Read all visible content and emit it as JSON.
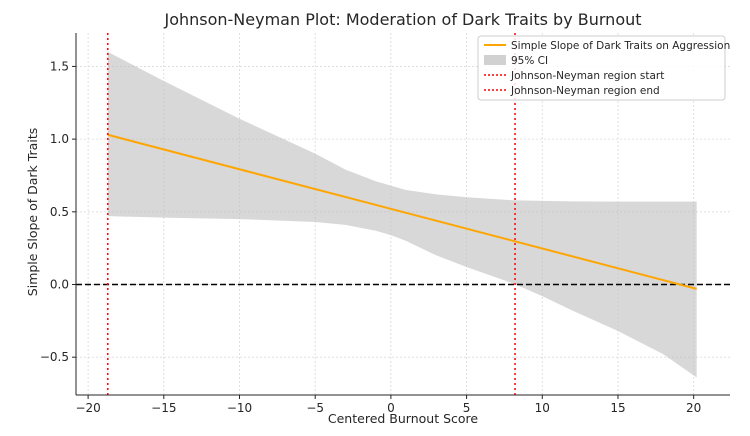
{
  "chart_data": {
    "type": "line",
    "title": "Johnson-Neyman Plot: Moderation of Dark Traits by Burnout",
    "xlabel": "Centered Burnout Score",
    "ylabel": "Simple Slope of Dark Traits",
    "xlim": [
      -20.8,
      22.4
    ],
    "ylim": [
      -0.76,
      1.73
    ],
    "x_ticks": [
      -20,
      -15,
      -10,
      -5,
      0,
      5,
      10,
      15,
      20
    ],
    "x_tick_labels": [
      "−20",
      "−15",
      "−10",
      "−5",
      "0",
      "5",
      "10",
      "15",
      "20"
    ],
    "y_ticks": [
      -0.5,
      0.0,
      0.5,
      1.0,
      1.5
    ],
    "y_tick_labels": [
      "−0.5",
      "0.0",
      "0.5",
      "1.0",
      "1.5"
    ],
    "grid": true,
    "legend_position": "top-right",
    "series": [
      {
        "name": "Simple Slope of Dark Traits on Aggression",
        "color": "#FFA500",
        "x": [
          -18.7,
          20.2
        ],
        "y": [
          1.03,
          -0.03
        ]
      }
    ],
    "ci_band": {
      "name": "95% CI",
      "color": "#BEBEBE",
      "x": [
        -18.7,
        -15,
        -10,
        -5,
        -3,
        -1,
        0,
        1,
        3,
        5,
        8,
        10,
        12,
        15,
        18,
        20.2
      ],
      "upper": [
        1.6,
        1.4,
        1.14,
        0.9,
        0.79,
        0.71,
        0.68,
        0.65,
        0.62,
        0.6,
        0.58,
        0.575,
        0.572,
        0.57,
        0.57,
        0.57
      ],
      "lower": [
        0.47,
        0.46,
        0.45,
        0.43,
        0.41,
        0.37,
        0.34,
        0.3,
        0.2,
        0.12,
        0.01,
        -0.08,
        -0.18,
        -0.32,
        -0.48,
        -0.64
      ]
    },
    "zero_line": {
      "y": 0.0,
      "color": "#000000",
      "style": "dashed"
    },
    "vlines": [
      {
        "name": "Johnson-Neyman region start",
        "x": -18.7,
        "color": "#FF0000",
        "style": "dotted"
      },
      {
        "name": "Johnson-Neyman region end",
        "x": 8.2,
        "color": "#FF0000",
        "style": "dotted"
      }
    ]
  }
}
